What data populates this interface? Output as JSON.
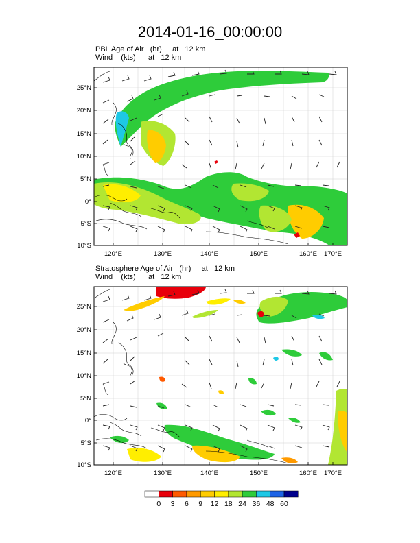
{
  "title": "2014-01-16_00:00:00",
  "panels": [
    {
      "field_label": "PBL Age of Air   (hr)     at   12 km",
      "wind_label": "Wind    (kts)      at   12 km"
    },
    {
      "field_label": "Stratosphere Age of Air   (hr)     at   12 km",
      "wind_label": "Wind    (kts)      at   12 km"
    }
  ],
  "lat_ticks": [
    "25°N",
    "20°N",
    "15°N",
    "10°N",
    "5°N",
    "0°",
    "5°S",
    "10°S"
  ],
  "lon_ticks": [
    "120°E",
    "130°E",
    "140°E",
    "150°E",
    "160°E",
    "170°E"
  ],
  "colorbar": {
    "labels": [
      "0",
      "3",
      "6",
      "9",
      "12",
      "18",
      "24",
      "36",
      "48",
      "60"
    ],
    "colors": [
      "#ffffff",
      "#e8000b",
      "#ff5a00",
      "#ff9a00",
      "#ffcc00",
      "#ffee00",
      "#b2e632",
      "#2ecc3a",
      "#1ec8e6",
      "#1e64e6",
      "#00008c"
    ]
  }
}
